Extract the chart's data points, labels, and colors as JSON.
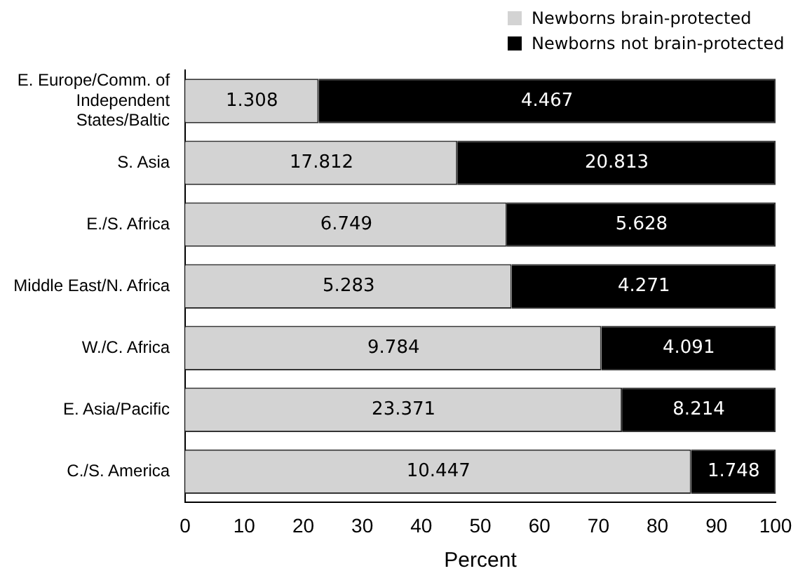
{
  "chart_data": {
    "type": "bar",
    "orientation": "horizontal",
    "stacked": true,
    "xlabel": "Percent",
    "categories": [
      "E. Europe/Comm. of Independent States/Baltic",
      "S. Asia",
      "E./S. Africa",
      "Middle East/N. Africa",
      "W./C. Africa",
      "E. Asia/Pacific",
      "C./S. America"
    ],
    "series": [
      {
        "name": "Newborns brain-protected",
        "color": "#d3d3d3",
        "values": [
          22.6,
          46.1,
          54.5,
          55.3,
          70.5,
          74.0,
          85.7
        ]
      },
      {
        "name": "Newborns not brain-protected",
        "color": "#000000",
        "values": [
          77.4,
          53.9,
          45.5,
          44.7,
          29.5,
          26.0,
          14.3
        ]
      }
    ],
    "annotations": [
      {
        "text": "1.308",
        "x": 11.3,
        "y": "E. Europe/Comm. of Independent States/Baltic"
      },
      {
        "text": "4.467",
        "x": 61.3,
        "y": "E. Europe/Comm. of Independent States/Baltic"
      },
      {
        "text": "17.812",
        "x": 23.1,
        "y": "S. Asia"
      },
      {
        "text": "20.813",
        "x": 73.1,
        "y": "S. Asia"
      },
      {
        "text": "6.749",
        "x": 27.3,
        "y": "E./S. Africa"
      },
      {
        "text": "5.628",
        "x": 77.3,
        "y": "E./S. Africa"
      },
      {
        "text": "5.283",
        "x": 27.7,
        "y": "Middle East/N. Africa"
      },
      {
        "text": "4.271",
        "x": 77.7,
        "y": "Middle East/N. Africa"
      },
      {
        "text": "9.784",
        "x": 35.3,
        "y": "W./C. Africa"
      },
      {
        "text": "4.091",
        "x": 85.3,
        "y": "W./C. Africa"
      },
      {
        "text": "23.371",
        "x": 37.0,
        "y": "E. Asia/Pacific"
      },
      {
        "text": "8.214",
        "x": 87.0,
        "y": "E. Asia/Pacific"
      },
      {
        "text": "10.447",
        "x": 42.9,
        "y": "C./S. America"
      },
      {
        "text": "1.748",
        "x": 92.9,
        "y": "C./S. America"
      }
    ],
    "xlim": [
      0,
      100
    ],
    "xticks": [
      0,
      10,
      20,
      30,
      40,
      50,
      60,
      70,
      80,
      90,
      100
    ],
    "grid": false,
    "legend": "top"
  }
}
